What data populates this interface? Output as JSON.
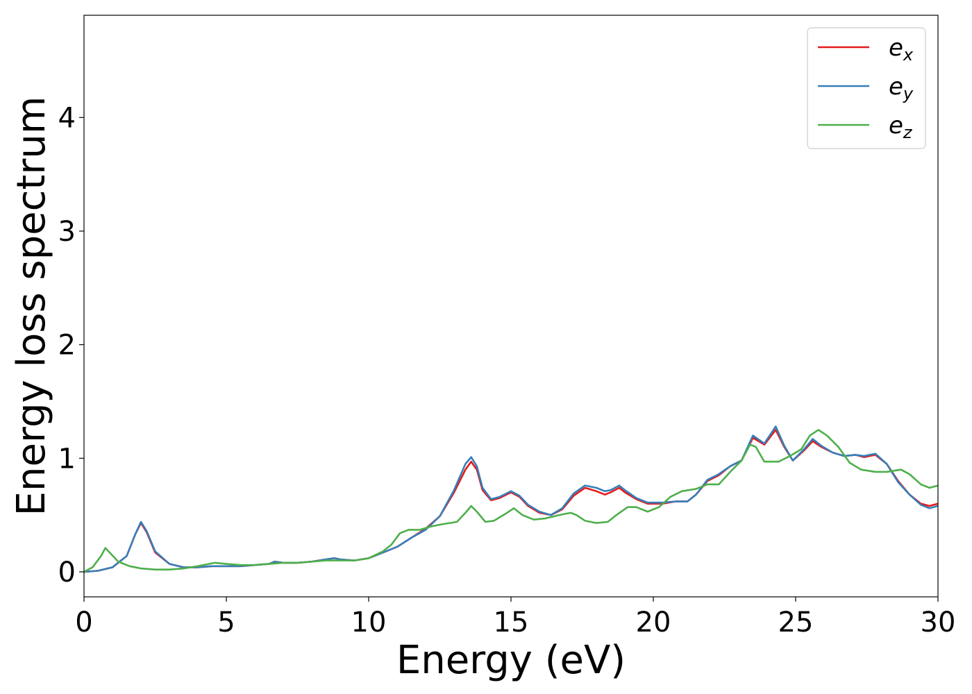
{
  "chart_data": {
    "type": "line",
    "title": "",
    "xlabel": "Energy (eV)",
    "ylabel": "Energy loss spectrum",
    "xlim": [
      0,
      30
    ],
    "ylim": [
      -0.22,
      4.9
    ],
    "xticks": [
      0,
      5,
      10,
      15,
      20,
      25,
      30
    ],
    "yticks": [
      0,
      1,
      2,
      3,
      4
    ],
    "grid": false,
    "legend_placement": "top-right",
    "series": [
      {
        "name": "e_x",
        "base": "e",
        "sub": "x",
        "color": "#e41a1c",
        "points": [
          [
            0,
            0
          ],
          [
            0.5,
            0.01
          ],
          [
            1,
            0.04
          ],
          [
            1.5,
            0.14
          ],
          [
            1.8,
            0.33
          ],
          [
            2.0,
            0.43
          ],
          [
            2.2,
            0.35
          ],
          [
            2.5,
            0.17
          ],
          [
            3.0,
            0.07
          ],
          [
            3.5,
            0.04
          ],
          [
            4,
            0.04
          ],
          [
            4.5,
            0.05
          ],
          [
            5,
            0.05
          ],
          [
            5.5,
            0.05
          ],
          [
            6,
            0.06
          ],
          [
            6.5,
            0.07
          ],
          [
            6.7,
            0.09
          ],
          [
            7,
            0.08
          ],
          [
            7.5,
            0.08
          ],
          [
            8,
            0.09
          ],
          [
            8.5,
            0.11
          ],
          [
            8.8,
            0.12
          ],
          [
            9,
            0.11
          ],
          [
            9.5,
            0.1
          ],
          [
            10,
            0.12
          ],
          [
            10.5,
            0.17
          ],
          [
            11,
            0.22
          ],
          [
            11.5,
            0.3
          ],
          [
            12,
            0.38
          ],
          [
            12.5,
            0.49
          ],
          [
            13,
            0.7
          ],
          [
            13.4,
            0.9
          ],
          [
            13.6,
            0.97
          ],
          [
            13.8,
            0.9
          ],
          [
            14,
            0.72
          ],
          [
            14.3,
            0.63
          ],
          [
            14.6,
            0.65
          ],
          [
            15,
            0.7
          ],
          [
            15.3,
            0.66
          ],
          [
            15.6,
            0.58
          ],
          [
            16,
            0.52
          ],
          [
            16.4,
            0.5
          ],
          [
            16.8,
            0.55
          ],
          [
            17.2,
            0.67
          ],
          [
            17.6,
            0.74
          ],
          [
            18,
            0.71
          ],
          [
            18.3,
            0.68
          ],
          [
            18.5,
            0.7
          ],
          [
            18.8,
            0.74
          ],
          [
            19,
            0.7
          ],
          [
            19.4,
            0.64
          ],
          [
            19.8,
            0.6
          ],
          [
            20.3,
            0.6
          ],
          [
            20.8,
            0.62
          ],
          [
            21.2,
            0.62
          ],
          [
            21.5,
            0.68
          ],
          [
            21.9,
            0.8
          ],
          [
            22.3,
            0.85
          ],
          [
            22.7,
            0.93
          ],
          [
            23.1,
            0.98
          ],
          [
            23.5,
            1.18
          ],
          [
            23.9,
            1.12
          ],
          [
            24.3,
            1.25
          ],
          [
            24.6,
            1.1
          ],
          [
            24.9,
            0.98
          ],
          [
            25.3,
            1.07
          ],
          [
            25.6,
            1.15
          ],
          [
            25.9,
            1.1
          ],
          [
            26.3,
            1.05
          ],
          [
            26.7,
            1.02
          ],
          [
            27.1,
            1.03
          ],
          [
            27.4,
            1.01
          ],
          [
            27.8,
            1.03
          ],
          [
            28.2,
            0.95
          ],
          [
            28.6,
            0.8
          ],
          [
            29,
            0.68
          ],
          [
            29.4,
            0.6
          ],
          [
            29.7,
            0.58
          ],
          [
            30,
            0.6
          ]
        ]
      },
      {
        "name": "e_y",
        "base": "e",
        "sub": "y",
        "color": "#377eb8",
        "points": [
          [
            0,
            0
          ],
          [
            0.5,
            0.01
          ],
          [
            1,
            0.04
          ],
          [
            1.5,
            0.14
          ],
          [
            1.8,
            0.33
          ],
          [
            2.0,
            0.44
          ],
          [
            2.2,
            0.36
          ],
          [
            2.5,
            0.18
          ],
          [
            3.0,
            0.07
          ],
          [
            3.5,
            0.04
          ],
          [
            4,
            0.04
          ],
          [
            4.5,
            0.05
          ],
          [
            5,
            0.05
          ],
          [
            5.5,
            0.05
          ],
          [
            6,
            0.06
          ],
          [
            6.5,
            0.07
          ],
          [
            6.7,
            0.09
          ],
          [
            7,
            0.08
          ],
          [
            7.5,
            0.08
          ],
          [
            8,
            0.09
          ],
          [
            8.5,
            0.11
          ],
          [
            8.8,
            0.12
          ],
          [
            9,
            0.11
          ],
          [
            9.5,
            0.1
          ],
          [
            10,
            0.12
          ],
          [
            10.5,
            0.17
          ],
          [
            11,
            0.22
          ],
          [
            11.5,
            0.3
          ],
          [
            12,
            0.37
          ],
          [
            12.5,
            0.49
          ],
          [
            13,
            0.72
          ],
          [
            13.4,
            0.95
          ],
          [
            13.6,
            1.01
          ],
          [
            13.8,
            0.93
          ],
          [
            14,
            0.74
          ],
          [
            14.3,
            0.64
          ],
          [
            14.6,
            0.66
          ],
          [
            15,
            0.71
          ],
          [
            15.3,
            0.67
          ],
          [
            15.6,
            0.59
          ],
          [
            16,
            0.53
          ],
          [
            16.4,
            0.5
          ],
          [
            16.8,
            0.56
          ],
          [
            17.2,
            0.69
          ],
          [
            17.6,
            0.76
          ],
          [
            18,
            0.74
          ],
          [
            18.3,
            0.71
          ],
          [
            18.5,
            0.72
          ],
          [
            18.8,
            0.76
          ],
          [
            19,
            0.72
          ],
          [
            19.4,
            0.65
          ],
          [
            19.8,
            0.61
          ],
          [
            20.3,
            0.61
          ],
          [
            20.8,
            0.62
          ],
          [
            21.2,
            0.62
          ],
          [
            21.5,
            0.68
          ],
          [
            21.9,
            0.81
          ],
          [
            22.3,
            0.86
          ],
          [
            22.7,
            0.93
          ],
          [
            23.1,
            0.98
          ],
          [
            23.5,
            1.2
          ],
          [
            23.9,
            1.13
          ],
          [
            24.3,
            1.28
          ],
          [
            24.6,
            1.11
          ],
          [
            24.9,
            0.98
          ],
          [
            25.3,
            1.08
          ],
          [
            25.6,
            1.17
          ],
          [
            25.9,
            1.11
          ],
          [
            26.3,
            1.05
          ],
          [
            26.7,
            1.02
          ],
          [
            27.1,
            1.03
          ],
          [
            27.4,
            1.02
          ],
          [
            27.8,
            1.04
          ],
          [
            28.2,
            0.95
          ],
          [
            28.6,
            0.79
          ],
          [
            29,
            0.68
          ],
          [
            29.4,
            0.59
          ],
          [
            29.7,
            0.56
          ],
          [
            30,
            0.58
          ]
        ]
      },
      {
        "name": "e_z",
        "base": "e",
        "sub": "z",
        "color": "#4daf4a",
        "points": [
          [
            0,
            0
          ],
          [
            0.3,
            0.04
          ],
          [
            0.6,
            0.14
          ],
          [
            0.75,
            0.21
          ],
          [
            0.9,
            0.17
          ],
          [
            1.2,
            0.09
          ],
          [
            1.6,
            0.05
          ],
          [
            2,
            0.03
          ],
          [
            2.5,
            0.02
          ],
          [
            3,
            0.02
          ],
          [
            3.5,
            0.03
          ],
          [
            4,
            0.05
          ],
          [
            4.6,
            0.08
          ],
          [
            5,
            0.07
          ],
          [
            5.5,
            0.06
          ],
          [
            6,
            0.06
          ],
          [
            6.5,
            0.07
          ],
          [
            7,
            0.08
          ],
          [
            7.5,
            0.08
          ],
          [
            8,
            0.09
          ],
          [
            8.5,
            0.1
          ],
          [
            9,
            0.1
          ],
          [
            9.5,
            0.1
          ],
          [
            10,
            0.12
          ],
          [
            10.5,
            0.18
          ],
          [
            10.8,
            0.24
          ],
          [
            11.1,
            0.34
          ],
          [
            11.4,
            0.37
          ],
          [
            11.8,
            0.37
          ],
          [
            12.2,
            0.4
          ],
          [
            12.6,
            0.42
          ],
          [
            13.1,
            0.44
          ],
          [
            13.4,
            0.52
          ],
          [
            13.6,
            0.58
          ],
          [
            13.8,
            0.53
          ],
          [
            14.1,
            0.44
          ],
          [
            14.4,
            0.45
          ],
          [
            14.8,
            0.51
          ],
          [
            15.1,
            0.56
          ],
          [
            15.4,
            0.5
          ],
          [
            15.8,
            0.46
          ],
          [
            16.2,
            0.47
          ],
          [
            16.7,
            0.5
          ],
          [
            17.1,
            0.52
          ],
          [
            17.3,
            0.5
          ],
          [
            17.6,
            0.45
          ],
          [
            18,
            0.43
          ],
          [
            18.4,
            0.44
          ],
          [
            18.7,
            0.5
          ],
          [
            19.1,
            0.57
          ],
          [
            19.4,
            0.57
          ],
          [
            19.8,
            0.53
          ],
          [
            20.2,
            0.57
          ],
          [
            20.6,
            0.66
          ],
          [
            21,
            0.71
          ],
          [
            21.5,
            0.73
          ],
          [
            21.9,
            0.77
          ],
          [
            22.3,
            0.77
          ],
          [
            22.7,
            0.88
          ],
          [
            23.1,
            0.98
          ],
          [
            23.4,
            1.12
          ],
          [
            23.6,
            1.1
          ],
          [
            23.9,
            0.97
          ],
          [
            24.4,
            0.97
          ],
          [
            24.8,
            1.02
          ],
          [
            25.2,
            1.08
          ],
          [
            25.5,
            1.2
          ],
          [
            25.8,
            1.25
          ],
          [
            26.1,
            1.2
          ],
          [
            26.5,
            1.1
          ],
          [
            26.9,
            0.96
          ],
          [
            27.3,
            0.9
          ],
          [
            27.8,
            0.88
          ],
          [
            28.2,
            0.88
          ],
          [
            28.7,
            0.9
          ],
          [
            29,
            0.86
          ],
          [
            29.4,
            0.77
          ],
          [
            29.7,
            0.74
          ],
          [
            30,
            0.76
          ]
        ]
      }
    ]
  }
}
